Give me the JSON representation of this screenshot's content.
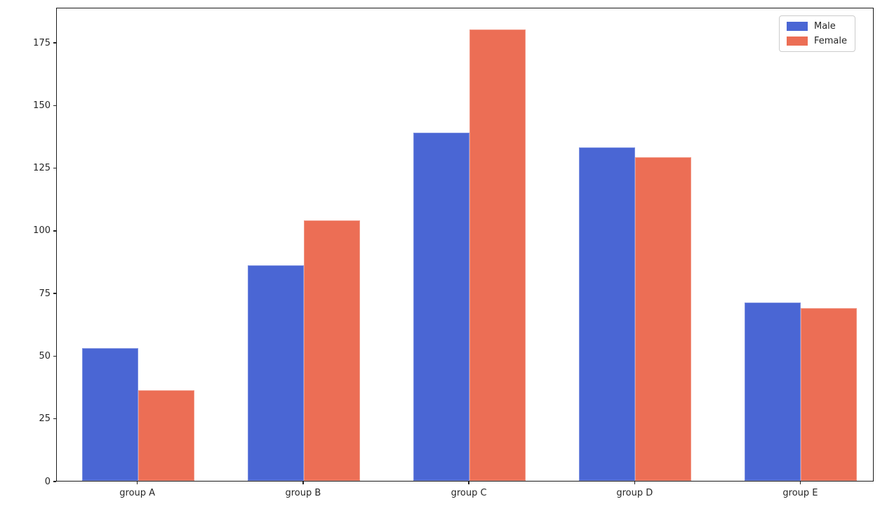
{
  "figure": {
    "background": "#ffffff",
    "spine_color": "#1a1a1a",
    "tick_color": "#262626"
  },
  "chart_data": {
    "type": "bar",
    "title": "",
    "xlabel": "",
    "ylabel": "",
    "categories": [
      "group A",
      "group B",
      "group C",
      "group D",
      "group E"
    ],
    "series": [
      {
        "name": "Male",
        "color": "#4a66d4",
        "values": [
          53,
          86,
          139,
          133,
          71
        ]
      },
      {
        "name": "Female",
        "color": "#ec6e55",
        "values": [
          36,
          104,
          180,
          129,
          69
        ]
      }
    ],
    "ylim": [
      0,
      189
    ],
    "yticks": [
      0,
      25,
      50,
      75,
      100,
      125,
      150,
      175
    ],
    "grid": false,
    "legend_position": "upper right",
    "legend_labels": [
      "Male",
      "Female"
    ]
  }
}
